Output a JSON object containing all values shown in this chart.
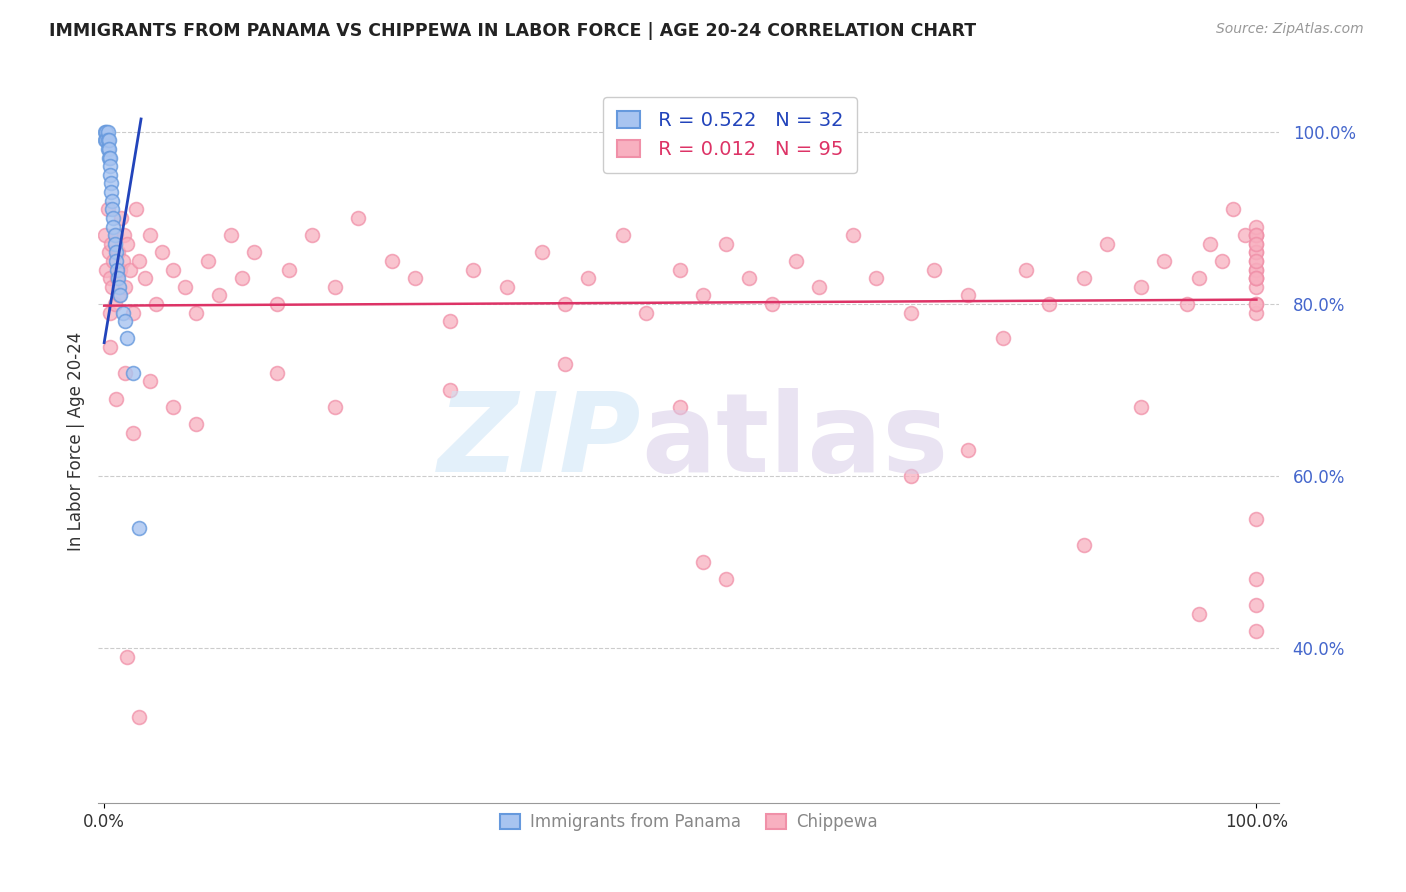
{
  "title": "IMMIGRANTS FROM PANAMA VS CHIPPEWA IN LABOR FORCE | AGE 20-24 CORRELATION CHART",
  "source": "Source: ZipAtlas.com",
  "ylabel": "In Labor Force | Age 20-24",
  "yticks": [
    0.4,
    0.6,
    0.8,
    1.0
  ],
  "ytick_labels": [
    "40.0%",
    "60.0%",
    "80.0%",
    "100.0%"
  ],
  "grid_color": "#cccccc",
  "legend_r1": "R = 0.522",
  "legend_n1": "N = 32",
  "legend_r2": "R = 0.012",
  "legend_n2": "N = 95",
  "blue_fill": "#a8c4f0",
  "blue_edge": "#6699dd",
  "pink_fill": "#f8b0c0",
  "pink_edge": "#f090a8",
  "trendline_blue": "#2244bb",
  "trendline_pink": "#dd3366",
  "panama_x": [
    0.001,
    0.001,
    0.002,
    0.002,
    0.003,
    0.003,
    0.003,
    0.004,
    0.004,
    0.004,
    0.005,
    0.005,
    0.005,
    0.006,
    0.006,
    0.007,
    0.007,
    0.008,
    0.008,
    0.009,
    0.009,
    0.01,
    0.01,
    0.011,
    0.012,
    0.013,
    0.014,
    0.016,
    0.018,
    0.02,
    0.025,
    0.03
  ],
  "panama_y": [
    1.0,
    0.99,
    1.0,
    0.99,
    1.0,
    0.99,
    0.98,
    0.99,
    0.98,
    0.97,
    0.97,
    0.96,
    0.95,
    0.94,
    0.93,
    0.92,
    0.91,
    0.9,
    0.89,
    0.88,
    0.87,
    0.86,
    0.85,
    0.84,
    0.83,
    0.82,
    0.81,
    0.79,
    0.78,
    0.76,
    0.72,
    0.54
  ],
  "chippewa_x": [
    0.001,
    0.002,
    0.003,
    0.004,
    0.005,
    0.005,
    0.006,
    0.007,
    0.008,
    0.009,
    0.01,
    0.011,
    0.012,
    0.013,
    0.014,
    0.015,
    0.016,
    0.017,
    0.018,
    0.02,
    0.022,
    0.025,
    0.028,
    0.03,
    0.035,
    0.04,
    0.045,
    0.05,
    0.06,
    0.07,
    0.08,
    0.09,
    0.1,
    0.11,
    0.12,
    0.13,
    0.15,
    0.16,
    0.18,
    0.2,
    0.22,
    0.25,
    0.27,
    0.3,
    0.32,
    0.35,
    0.38,
    0.4,
    0.42,
    0.45,
    0.47,
    0.5,
    0.52,
    0.54,
    0.56,
    0.58,
    0.6,
    0.62,
    0.65,
    0.67,
    0.7,
    0.72,
    0.75,
    0.78,
    0.8,
    0.82,
    0.85,
    0.87,
    0.9,
    0.92,
    0.94,
    0.95,
    0.96,
    0.97,
    0.98,
    0.99,
    1.0,
    1.0,
    1.0,
    1.0,
    1.0,
    1.0,
    1.0,
    1.0,
    1.0,
    1.0,
    1.0,
    1.0,
    1.0,
    1.0,
    1.0,
    1.0,
    1.0,
    1.0,
    1.0
  ],
  "chippewa_y": [
    0.88,
    0.84,
    0.91,
    0.86,
    0.83,
    0.79,
    0.87,
    0.82,
    0.85,
    0.8,
    0.88,
    0.83,
    0.86,
    0.81,
    0.84,
    0.9,
    0.85,
    0.88,
    0.82,
    0.87,
    0.84,
    0.79,
    0.91,
    0.85,
    0.83,
    0.88,
    0.8,
    0.86,
    0.84,
    0.82,
    0.79,
    0.85,
    0.81,
    0.88,
    0.83,
    0.86,
    0.8,
    0.84,
    0.88,
    0.82,
    0.9,
    0.85,
    0.83,
    0.78,
    0.84,
    0.82,
    0.86,
    0.8,
    0.83,
    0.88,
    0.79,
    0.84,
    0.81,
    0.87,
    0.83,
    0.8,
    0.85,
    0.82,
    0.88,
    0.83,
    0.79,
    0.84,
    0.81,
    0.76,
    0.84,
    0.8,
    0.83,
    0.87,
    0.82,
    0.85,
    0.8,
    0.83,
    0.87,
    0.85,
    0.91,
    0.88,
    0.84,
    0.88,
    0.82,
    0.86,
    0.79,
    0.83,
    0.88,
    0.85,
    0.8,
    0.84,
    0.87,
    0.83,
    0.89,
    0.86,
    0.8,
    0.85,
    0.88,
    0.83,
    0.87
  ],
  "chippewa_outlier_x": [
    0.005,
    0.01,
    0.018,
    0.025,
    0.04,
    0.06,
    0.08,
    0.15,
    0.2,
    0.3,
    0.4,
    0.5,
    0.52,
    0.54,
    0.7,
    0.75,
    0.85,
    0.9,
    0.95,
    1.0,
    1.0,
    1.0,
    1.0,
    0.02,
    0.03
  ],
  "chippewa_outlier_y": [
    0.75,
    0.69,
    0.72,
    0.65,
    0.71,
    0.68,
    0.66,
    0.72,
    0.68,
    0.7,
    0.73,
    0.68,
    0.5,
    0.48,
    0.6,
    0.63,
    0.52,
    0.68,
    0.44,
    0.55,
    0.48,
    0.45,
    0.42,
    0.39,
    0.32
  ]
}
